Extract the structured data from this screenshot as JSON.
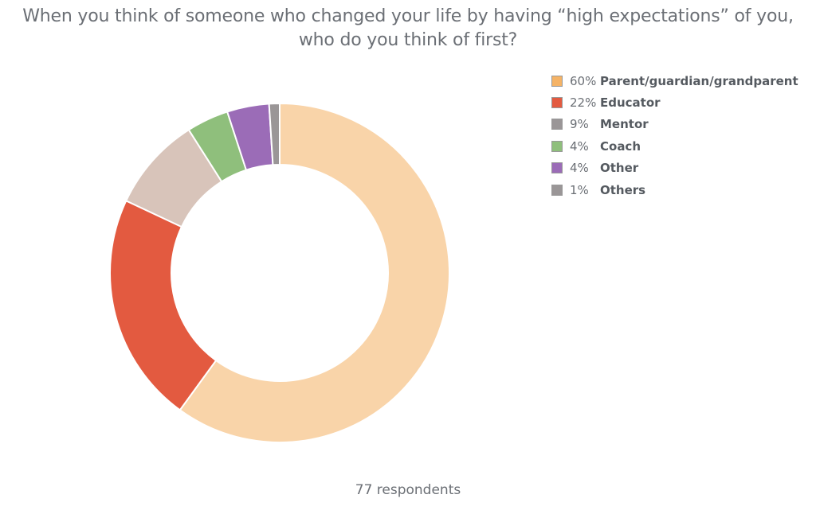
{
  "chart_data": {
    "type": "pie",
    "variant": "donut",
    "title_lines": [
      "When you think of someone who changed your life by having “high expectations” of you,",
      "who do you think of first?"
    ],
    "slices": [
      {
        "label": "Parent/guardian/grandparent",
        "pct_label": "60%",
        "value": 60,
        "color": "#f9d4a9",
        "legend_color": "#f5b366"
      },
      {
        "label": "Educator",
        "pct_label": "22%",
        "value": 22,
        "color": "#e35a40",
        "legend_color": "#e35a40"
      },
      {
        "label": "Mentor",
        "pct_label": "9%",
        "value": 9,
        "color": "#d8c4ba",
        "legend_color": "#9a9697"
      },
      {
        "label": "Coach",
        "pct_label": "4%",
        "value": 4,
        "color": "#8fbf7c",
        "legend_color": "#8fbf7c"
      },
      {
        "label": "Other",
        "pct_label": "4%",
        "value": 4,
        "color": "#9b6cb7",
        "legend_color": "#9b6cb7"
      },
      {
        "label": "Others",
        "pct_label": "1%",
        "value": 1,
        "color": "#9a9697",
        "legend_color": "#9a9697"
      }
    ],
    "legend_position": "top-right",
    "footer": "77 respondents"
  }
}
